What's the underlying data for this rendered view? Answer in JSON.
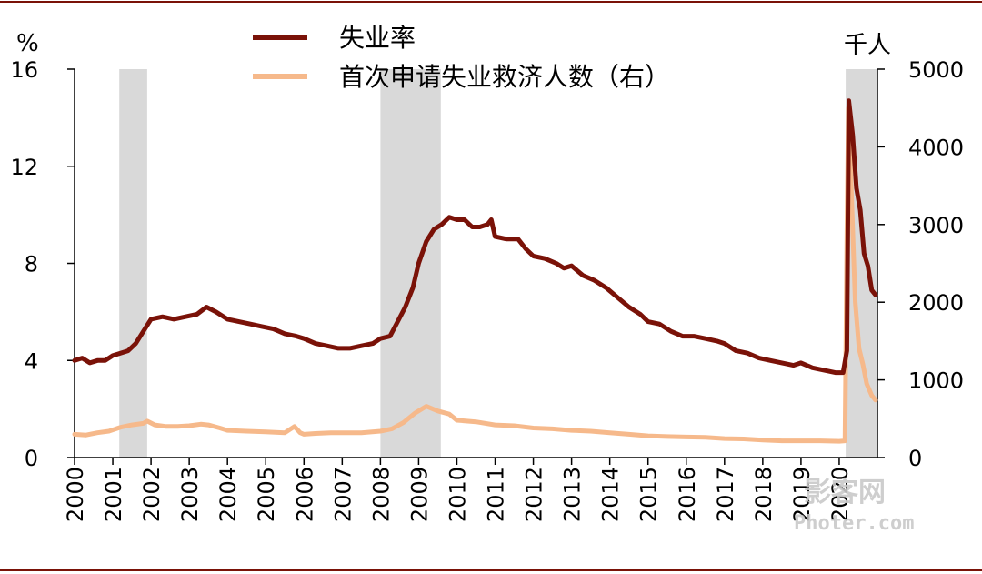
{
  "chart_data": {
    "type": "line",
    "left_unit": "%",
    "right_unit": "千人",
    "y_left": {
      "range": [
        0,
        16
      ],
      "ticks": [
        "0",
        "4",
        "8",
        "12",
        "16"
      ]
    },
    "y_right": {
      "range": [
        0,
        5000
      ],
      "ticks": [
        "0",
        "1000",
        "2000",
        "3000",
        "4000",
        "5000"
      ]
    },
    "x_range": [
      2000,
      2021
    ],
    "x_ticks": [
      "2000",
      "2001",
      "2002",
      "2003",
      "2004",
      "2005",
      "2006",
      "2007",
      "2008",
      "2009",
      "2010",
      "2011",
      "2012",
      "2013",
      "2014",
      "2015",
      "2016",
      "2017",
      "2018",
      "2019",
      "2020"
    ],
    "recession_periods": [
      [
        2001.17,
        2001.9
      ],
      [
        2008.0,
        2009.58
      ],
      [
        2020.17,
        2021.0
      ]
    ],
    "legend": [
      "失业率",
      "首次申请失业救济人数（右）"
    ],
    "series": [
      {
        "name": "失业率",
        "axis": "left",
        "color": "#7a1208",
        "points": [
          [
            2000.0,
            4.0
          ],
          [
            2000.2,
            4.1
          ],
          [
            2000.4,
            3.9
          ],
          [
            2000.6,
            4.0
          ],
          [
            2000.8,
            4.0
          ],
          [
            2001.0,
            4.2
          ],
          [
            2001.2,
            4.3
          ],
          [
            2001.4,
            4.4
          ],
          [
            2001.6,
            4.7
          ],
          [
            2001.8,
            5.2
          ],
          [
            2002.0,
            5.7
          ],
          [
            2002.3,
            5.8
          ],
          [
            2002.6,
            5.7
          ],
          [
            2002.9,
            5.8
          ],
          [
            2003.2,
            5.9
          ],
          [
            2003.45,
            6.2
          ],
          [
            2003.7,
            6.0
          ],
          [
            2004.0,
            5.7
          ],
          [
            2004.3,
            5.6
          ],
          [
            2004.6,
            5.5
          ],
          [
            2004.9,
            5.4
          ],
          [
            2005.2,
            5.3
          ],
          [
            2005.5,
            5.1
          ],
          [
            2005.8,
            5.0
          ],
          [
            2006.0,
            4.9
          ],
          [
            2006.3,
            4.7
          ],
          [
            2006.6,
            4.6
          ],
          [
            2006.9,
            4.5
          ],
          [
            2007.2,
            4.5
          ],
          [
            2007.5,
            4.6
          ],
          [
            2007.8,
            4.7
          ],
          [
            2008.0,
            4.9
          ],
          [
            2008.25,
            5.0
          ],
          [
            2008.45,
            5.6
          ],
          [
            2008.65,
            6.2
          ],
          [
            2008.85,
            7.0
          ],
          [
            2009.0,
            8.0
          ],
          [
            2009.2,
            8.9
          ],
          [
            2009.4,
            9.4
          ],
          [
            2009.6,
            9.6
          ],
          [
            2009.8,
            9.9
          ],
          [
            2010.0,
            9.8
          ],
          [
            2010.2,
            9.8
          ],
          [
            2010.4,
            9.5
          ],
          [
            2010.6,
            9.5
          ],
          [
            2010.8,
            9.6
          ],
          [
            2010.9,
            9.8
          ],
          [
            2011.0,
            9.1
          ],
          [
            2011.3,
            9.0
          ],
          [
            2011.6,
            9.0
          ],
          [
            2011.8,
            8.6
          ],
          [
            2012.0,
            8.3
          ],
          [
            2012.3,
            8.2
          ],
          [
            2012.6,
            8.0
          ],
          [
            2012.8,
            7.8
          ],
          [
            2013.0,
            7.9
          ],
          [
            2013.3,
            7.5
          ],
          [
            2013.6,
            7.3
          ],
          [
            2013.9,
            7.0
          ],
          [
            2014.2,
            6.6
          ],
          [
            2014.5,
            6.2
          ],
          [
            2014.8,
            5.9
          ],
          [
            2015.0,
            5.6
          ],
          [
            2015.3,
            5.5
          ],
          [
            2015.6,
            5.2
          ],
          [
            2015.9,
            5.0
          ],
          [
            2016.2,
            5.0
          ],
          [
            2016.5,
            4.9
          ],
          [
            2016.8,
            4.8
          ],
          [
            2017.0,
            4.7
          ],
          [
            2017.3,
            4.4
          ],
          [
            2017.6,
            4.3
          ],
          [
            2017.9,
            4.1
          ],
          [
            2018.2,
            4.0
          ],
          [
            2018.5,
            3.9
          ],
          [
            2018.8,
            3.8
          ],
          [
            2019.0,
            3.9
          ],
          [
            2019.3,
            3.7
          ],
          [
            2019.6,
            3.6
          ],
          [
            2019.9,
            3.5
          ],
          [
            2020.1,
            3.5
          ],
          [
            2020.2,
            4.4
          ],
          [
            2020.25,
            14.7
          ],
          [
            2020.35,
            13.3
          ],
          [
            2020.45,
            11.1
          ],
          [
            2020.55,
            10.2
          ],
          [
            2020.65,
            8.4
          ],
          [
            2020.75,
            7.9
          ],
          [
            2020.85,
            6.9
          ],
          [
            2020.95,
            6.7
          ]
        ]
      },
      {
        "name": "首次申请失业救济人数（右）",
        "axis": "right",
        "color": "#f6b98b",
        "points": [
          [
            2000.0,
            300
          ],
          [
            2000.3,
            290
          ],
          [
            2000.6,
            320
          ],
          [
            2000.9,
            340
          ],
          [
            2001.2,
            390
          ],
          [
            2001.5,
            420
          ],
          [
            2001.8,
            440
          ],
          [
            2001.9,
            470
          ],
          [
            2002.1,
            420
          ],
          [
            2002.4,
            400
          ],
          [
            2002.7,
            400
          ],
          [
            2003.0,
            410
          ],
          [
            2003.3,
            430
          ],
          [
            2003.5,
            420
          ],
          [
            2003.8,
            380
          ],
          [
            2004.0,
            350
          ],
          [
            2004.5,
            340
          ],
          [
            2005.0,
            330
          ],
          [
            2005.5,
            320
          ],
          [
            2005.75,
            400
          ],
          [
            2005.9,
            320
          ],
          [
            2006.0,
            300
          ],
          [
            2006.3,
            310
          ],
          [
            2006.7,
            320
          ],
          [
            2007.0,
            320
          ],
          [
            2007.5,
            320
          ],
          [
            2008.0,
            340
          ],
          [
            2008.3,
            370
          ],
          [
            2008.6,
            450
          ],
          [
            2008.9,
            570
          ],
          [
            2009.2,
            660
          ],
          [
            2009.5,
            600
          ],
          [
            2009.8,
            560
          ],
          [
            2010.0,
            480
          ],
          [
            2010.5,
            460
          ],
          [
            2011.0,
            420
          ],
          [
            2011.5,
            410
          ],
          [
            2012.0,
            380
          ],
          [
            2012.5,
            370
          ],
          [
            2013.0,
            350
          ],
          [
            2013.5,
            340
          ],
          [
            2014.0,
            320
          ],
          [
            2014.5,
            300
          ],
          [
            2015.0,
            280
          ],
          [
            2015.5,
            270
          ],
          [
            2016.0,
            265
          ],
          [
            2016.5,
            260
          ],
          [
            2017.0,
            245
          ],
          [
            2017.5,
            240
          ],
          [
            2018.0,
            225
          ],
          [
            2018.5,
            215
          ],
          [
            2019.0,
            215
          ],
          [
            2019.5,
            215
          ],
          [
            2020.0,
            210
          ],
          [
            2020.15,
            215
          ],
          [
            2020.2,
            2900
          ],
          [
            2020.24,
            4500
          ],
          [
            2020.32,
            3400
          ],
          [
            2020.42,
            2000
          ],
          [
            2020.52,
            1400
          ],
          [
            2020.62,
            1200
          ],
          [
            2020.72,
            950
          ],
          [
            2020.85,
            800
          ],
          [
            2020.95,
            740
          ]
        ]
      }
    ]
  },
  "watermark": {
    "main": "影客网",
    "sub": "Photer.com"
  }
}
